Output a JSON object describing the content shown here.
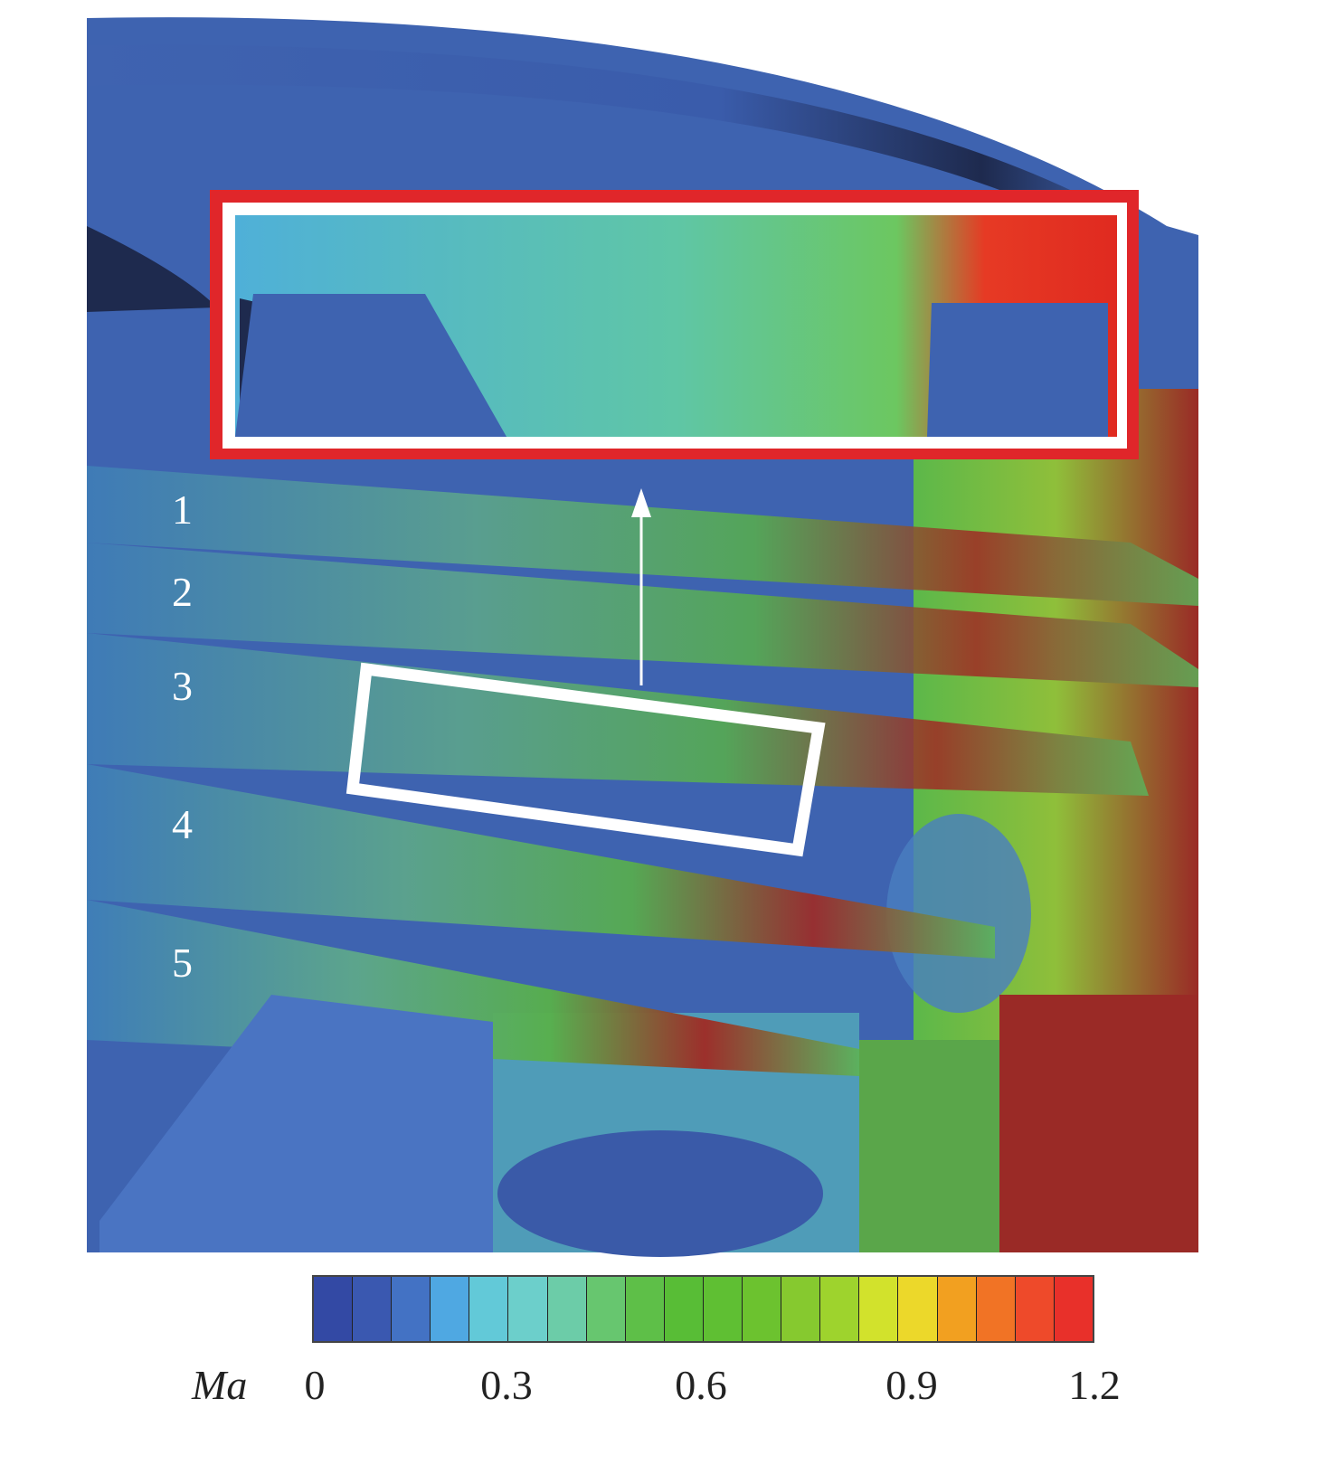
{
  "plane_labels": [
    "1",
    "2",
    "3",
    "4",
    "5"
  ],
  "colorbar": {
    "variable": "Ma",
    "min": 0,
    "max": 1.2,
    "ticks": [
      "0",
      "0.3",
      "0.6",
      "0.9",
      "1.2"
    ],
    "colors": [
      "#3349a4",
      "#3a58b0",
      "#4372c4",
      "#4fa8e2",
      "#62c9d8",
      "#6ccfcb",
      "#6ccca8",
      "#67c66f",
      "#5ebf48",
      "#58bd36",
      "#5fbf33",
      "#6cc22f",
      "#86c92f",
      "#9ed32d",
      "#d2e22c",
      "#ecd82a",
      "#f2a020",
      "#f17325",
      "#ee4a2a",
      "#e8302a"
    ]
  },
  "annotations": {
    "inset_frame_color": "#e0262a",
    "highlight_frame_color": "#ffffff",
    "arrow_color": "#ffffff"
  }
}
